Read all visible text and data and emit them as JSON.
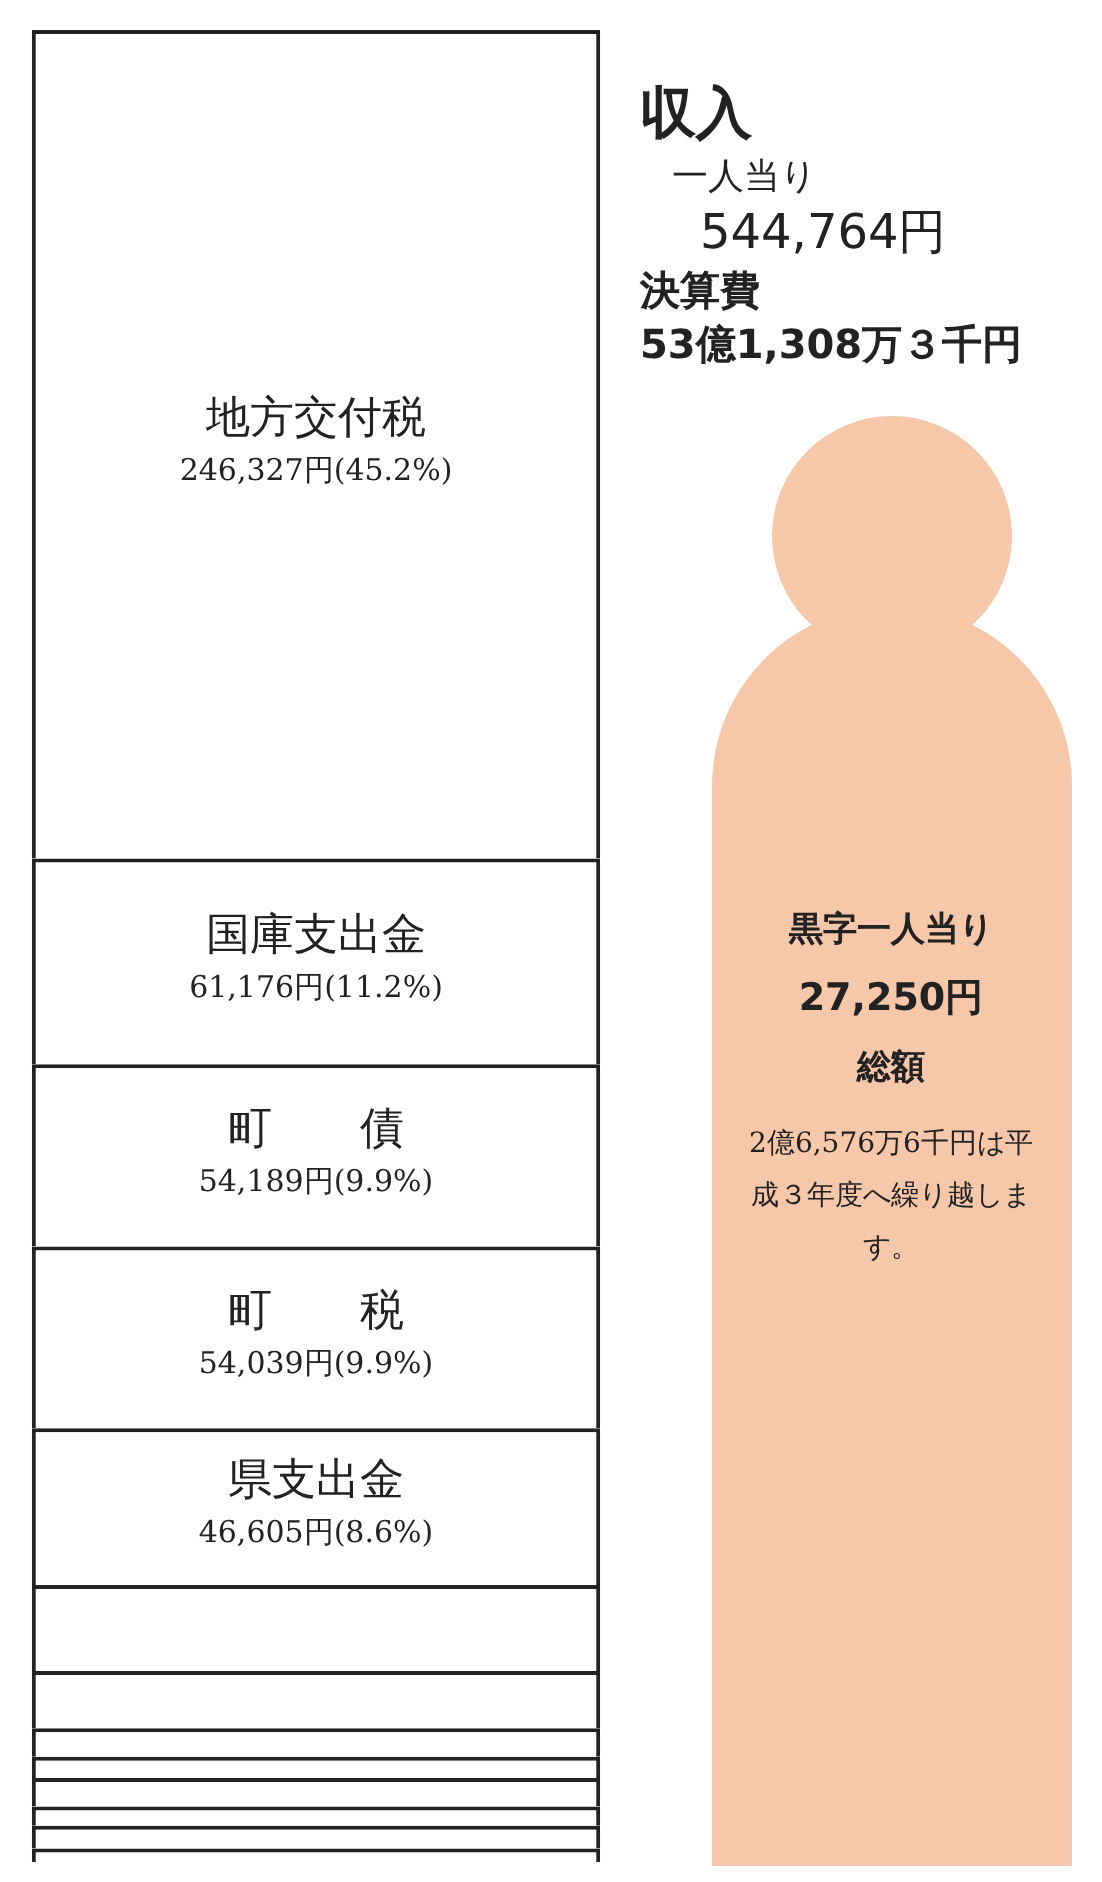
{
  "chart_data": {
    "type": "bar",
    "stacked": true,
    "title": "収入",
    "subtitle": "一人当り 544,764円",
    "categories": [
      null
    ],
    "series": [
      {
        "color": "#ffffff",
        "values": [
          4000
        ]
      },
      {
        "color": "#ffffff",
        "values": [
          6800
        ]
      },
      {
        "color": "#ffffff",
        "values": [
          5700
        ]
      },
      {
        "color": "#ffffff",
        "values": [
          8500
        ]
      },
      {
        "color": "#ffffff",
        "values": [
          6300
        ]
      },
      {
        "color": "#ffffff",
        "values": [
          8500
        ]
      },
      {
        "color": "#ffffff",
        "values": [
          17000
        ]
      },
      {
        "color": "#ffffff",
        "values": [
          25600
        ]
      },
      {
        "name": "県支出金",
        "color": "#ffffff",
        "values": [
          46605
        ],
        "value_labels": [
          "46,605円(8.6%)"
        ]
      },
      {
        "name": "町　　税",
        "color": "#ffffff",
        "values": [
          54039
        ],
        "value_labels": [
          "54,039円(9.9%)"
        ]
      },
      {
        "name": "町　　債",
        "color": "#ffffff",
        "values": [
          54189
        ],
        "value_labels": [
          "54,189円(9.9%)"
        ]
      },
      {
        "name": "国庫支出金",
        "color": "#ffffff",
        "values": [
          61176
        ],
        "value_labels": [
          "61,176円(11.2%)"
        ]
      },
      {
        "name": "地方交付税",
        "color": "#ffffff",
        "values": [
          246327
        ],
        "value_labels": [
          "246,327円(45.2%)"
        ]
      }
    ],
    "tick_labels": false,
    "legend": false,
    "annotations": [
      "決算費",
      "53億1,308万３千円",
      "黒字一人当り",
      "27,250円",
      "総額",
      "2億6,576万6千円は平成３年度へ繰り越します。"
    ]
  }
}
